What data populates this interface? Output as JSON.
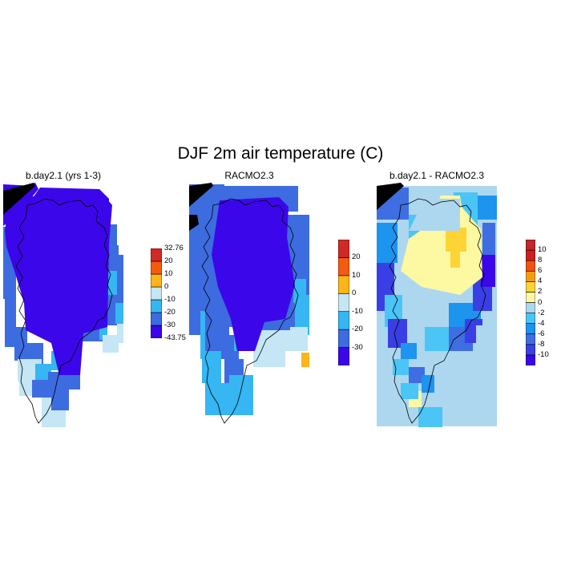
{
  "title": "DJF 2m air temperature (C)",
  "colors": {
    "t1": "#3b06e9",
    "t2": "#3d6be0",
    "t3": "#36b6f2",
    "t4": "#c4e6f5",
    "t5": "#fdb51a",
    "t6": "#f55a0f",
    "t7": "#d02a24",
    "d_n10": "#3b06e9",
    "d_n8": "#3a3fe5",
    "d_n6": "#3e6ee2",
    "d_n4": "#1d94ee",
    "d_n2": "#4bc5f5",
    "d_0": "#acd7ef",
    "d_2": "#fdf8a2",
    "d_4": "#fdd434",
    "d_6": "#f59c14",
    "d_8": "#f0530d",
    "d_10": "#d01e1e",
    "d_top": "#c0282a"
  },
  "panels": [
    {
      "title": "b.day2.1 (yrs 1-3)",
      "colorbar": {
        "colors": [
          "t1",
          "t2",
          "t3",
          "t4",
          "t5",
          "t6",
          "t7"
        ],
        "labels": [
          "-43.75",
          "-30",
          "-20",
          "-10",
          "0",
          "10",
          "20",
          "32.76"
        ],
        "label_mode": "edges"
      }
    },
    {
      "title": "RACMO2.3",
      "colorbar": {
        "colors": [
          "t1",
          "t2",
          "t3",
          "t4",
          "t5",
          "t6",
          "t7"
        ],
        "labels": [
          "-30",
          "-20",
          "-10",
          "0",
          "10",
          "20"
        ],
        "label_mode": "inner"
      }
    },
    {
      "title": "b.day2.1 - RACMO2.3",
      "colorbar": {
        "colors": [
          "d_n10",
          "d_n8",
          "d_n6",
          "d_n4",
          "d_n2",
          "d_0",
          "d_2",
          "d_4",
          "d_6",
          "d_8",
          "d_10",
          "d_top"
        ],
        "labels": [
          "-10",
          "-8",
          "-6",
          "-4",
          "-2",
          "0",
          "2",
          "4",
          "6",
          "8",
          "10"
        ],
        "label_mode": "inner"
      }
    }
  ]
}
